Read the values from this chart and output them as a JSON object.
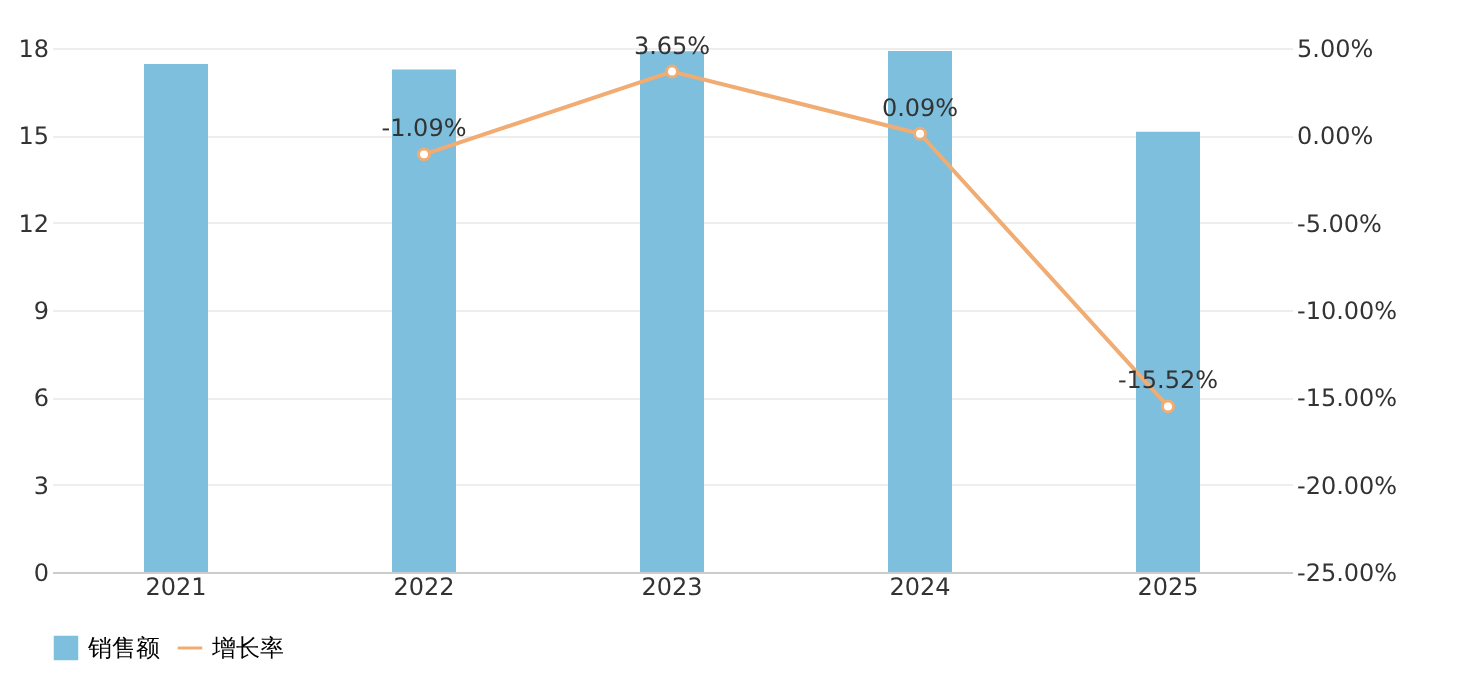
{
  "chart_data": {
    "type": "bar",
    "categories": [
      "2021",
      "2022",
      "2023",
      "2024",
      "2025"
    ],
    "series": [
      {
        "name": "销售额",
        "color": "#7dbfdc",
        "values": [
          17.45,
          17.26,
          17.89,
          17.9,
          15.12
        ]
      },
      {
        "name": "增长率",
        "type": "line",
        "axis": "y2",
        "color": "#f0ac73",
        "marker": "circle",
        "line_style": "solid",
        "values": [
          null,
          -1.09,
          3.65,
          0.09,
          -15.52
        ],
        "value_labels": [
          null,
          "-1.09%",
          "3.65%",
          "0.09%",
          "-15.52%"
        ]
      }
    ],
    "ylim": [
      0,
      18
    ],
    "yticks": [
      0,
      3,
      6,
      9,
      12,
      15,
      18
    ],
    "y2lim": [
      -25,
      5
    ],
    "y2ticks": [
      {
        "value": 5,
        "label": "5.00%"
      },
      {
        "value": 0,
        "label": "0.00%"
      },
      {
        "value": -5,
        "label": "-5.00%"
      },
      {
        "value": -10,
        "label": "-10.00%"
      },
      {
        "value": -15,
        "label": "-15.00%"
      },
      {
        "value": -20,
        "label": "-20.00%"
      },
      {
        "value": -25,
        "label": "-25.00%"
      }
    ],
    "grid": "y",
    "legend": "bottom"
  }
}
